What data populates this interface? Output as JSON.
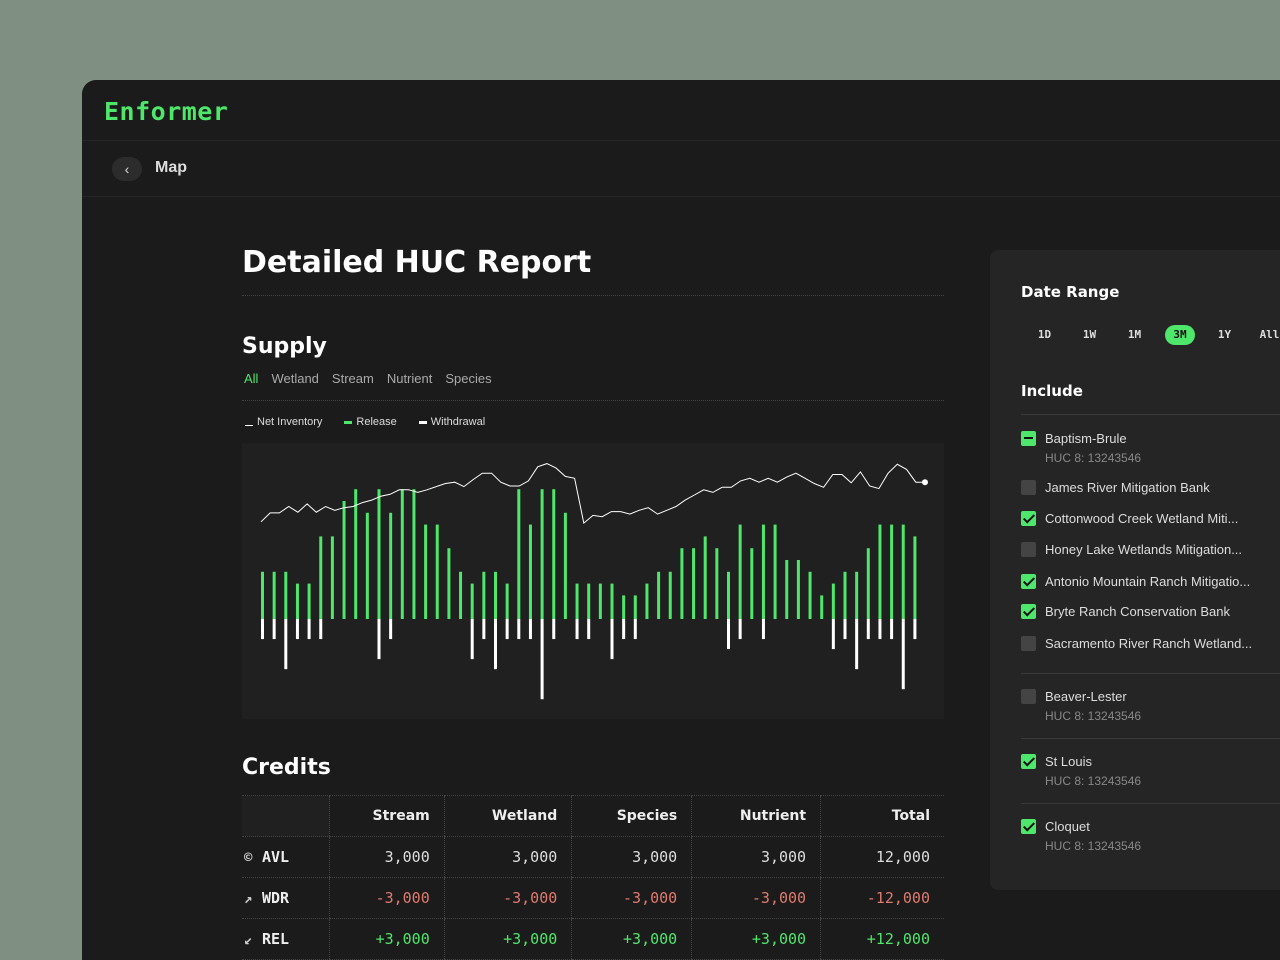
{
  "app": {
    "logo": "Enformer"
  },
  "subbar": {
    "back_icon": "chevron-left-icon",
    "title": "Map"
  },
  "page": {
    "title": "Detailed HUC Report"
  },
  "supply": {
    "title": "Supply",
    "tabs": [
      "All",
      "Wetland",
      "Stream",
      "Nutrient",
      "Species"
    ],
    "active_tab": "All",
    "legend": [
      "Net Inventory",
      "Release",
      "Withdrawal"
    ]
  },
  "colors": {
    "accent": "#4ee66b",
    "negative": "#e07a6e",
    "background": "#1b1b1b"
  },
  "chart_data": {
    "type": "bar",
    "series": [
      {
        "name": "Release",
        "values": [
          4,
          4,
          4,
          3,
          3,
          7,
          7,
          10,
          11,
          9,
          11,
          9,
          11,
          11,
          8,
          8,
          6,
          4,
          3,
          4,
          4,
          3,
          11,
          8,
          11,
          11,
          9,
          3,
          3,
          3,
          3,
          2,
          2,
          3,
          4,
          4,
          6,
          6,
          7,
          6,
          4,
          8,
          6,
          8,
          8,
          5,
          5,
          4,
          2,
          3,
          4,
          4,
          6,
          8,
          8,
          8,
          7
        ]
      },
      {
        "name": "Withdrawal",
        "values": [
          2,
          2,
          5,
          2,
          2,
          2,
          0,
          0,
          0,
          0,
          4,
          2,
          0,
          0,
          0,
          0,
          0,
          0,
          4,
          2,
          5,
          2,
          2,
          2,
          8,
          2,
          0,
          2,
          2,
          0,
          4,
          2,
          2,
          0,
          0,
          0,
          0,
          0,
          0,
          0,
          3,
          2,
          0,
          2,
          0,
          0,
          0,
          0,
          0,
          3,
          2,
          5,
          2,
          2,
          2,
          7,
          2
        ]
      },
      {
        "name": "Net Inventory",
        "values": [
          2,
          3.4,
          3.4,
          4.4,
          3.5,
          4.8,
          3.5,
          4.4,
          3.8,
          4.2,
          4.4,
          5,
          5.4,
          6,
          6.3,
          7,
          7,
          6.6,
          7,
          7.5,
          8,
          8.2,
          7.5,
          8.6,
          9.6,
          9.6,
          8.2,
          7.6,
          7.6,
          8.4,
          10.6,
          11.1,
          10.4,
          9.1,
          8.8,
          1.8,
          3,
          2.8,
          3.6,
          3.6,
          3.2,
          3.8,
          4.2,
          3.2,
          3.8,
          4.4,
          5.4,
          6.2,
          7,
          6.6,
          7.4,
          7.4,
          8.4,
          8.8,
          8.2,
          8.8,
          8.2,
          9,
          9.6,
          8.8,
          8,
          7.4,
          9.4,
          9.4,
          8.1,
          9.8,
          7.6,
          7.2,
          9.6,
          11,
          10.2,
          8.2,
          8.2
        ]
      }
    ],
    "note_series_lengths": "",
    "xlabel": "",
    "ylabel": "",
    "legend": [
      "Net Inventory",
      "Release",
      "Withdrawal"
    ],
    "grid": false
  },
  "credits": {
    "title": "Credits",
    "columns": [
      "",
      "Stream",
      "Wetland",
      "Species",
      "Nutrient",
      "Total"
    ],
    "rows": [
      {
        "label": "AVL",
        "icon": "copyright-icon",
        "values": [
          "3,000",
          "3,000",
          "3,000",
          "3,000",
          "12,000"
        ],
        "kind": "neutral"
      },
      {
        "label": "WDR",
        "icon": "arrow-up-right-icon",
        "values": [
          "-3,000",
          "-3,000",
          "-3,000",
          "-3,000",
          "-12,000"
        ],
        "kind": "neg"
      },
      {
        "label": "REL",
        "icon": "arrow-down-left-icon",
        "values": [
          "+3,000",
          "+3,000",
          "+3,000",
          "+3,000",
          "+12,000"
        ],
        "kind": "pos"
      }
    ]
  },
  "panel": {
    "date_range_title": "Date Range",
    "ranges": [
      "1D",
      "1W",
      "1M",
      "3M",
      "1Y",
      "All"
    ],
    "active_range": "3M",
    "include_title": "Include",
    "groups": [
      {
        "label": "Baptism-Brule",
        "sub": "HUC 8: 13243546",
        "state": "indeterminate",
        "children": [
          {
            "label": "James River Mitigation Bank",
            "checked": false
          },
          {
            "label": "Cottonwood Creek Wetland Miti...",
            "checked": true
          },
          {
            "label": "Honey Lake Wetlands Mitigation...",
            "checked": false
          },
          {
            "label": "Antonio Mountain Ranch Mitigatio...",
            "checked": true
          },
          {
            "label": "Bryte Ranch Conservation Bank",
            "checked": true
          },
          {
            "label": "Sacramento River Ranch Wetland...",
            "checked": false
          }
        ]
      },
      {
        "label": "Beaver-Lester",
        "sub": "HUC 8: 13243546",
        "state": "unchecked",
        "children": []
      },
      {
        "label": "St Louis",
        "sub": "HUC 8: 13243546",
        "state": "checked",
        "children": []
      },
      {
        "label": "Cloquet",
        "sub": "HUC 8: 13243546",
        "state": "checked",
        "children": []
      }
    ]
  }
}
